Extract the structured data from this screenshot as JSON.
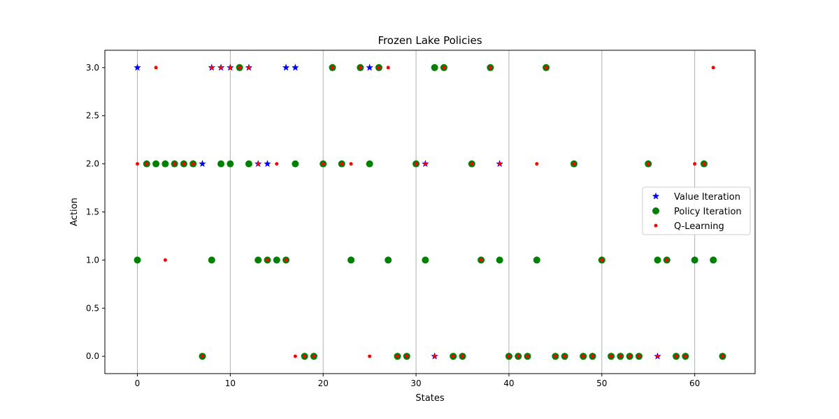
{
  "chart_data": {
    "type": "scatter",
    "title": "Frozen Lake Policies",
    "xlabel": "States",
    "ylabel": "Action",
    "xlim": [
      -3.5,
      66.5
    ],
    "ylim": [
      -0.18,
      3.18
    ],
    "x_ticks": [
      0,
      10,
      20,
      30,
      40,
      50,
      60
    ],
    "x_tick_labels": [
      "0",
      "10",
      "20",
      "30",
      "40",
      "50",
      "60"
    ],
    "y_ticks": [
      0.0,
      0.5,
      1.0,
      1.5,
      2.0,
      2.5,
      3.0
    ],
    "y_tick_labels": [
      "0.0",
      "0.5",
      "1.0",
      "1.5",
      "2.0",
      "2.5",
      "3.0"
    ],
    "grid": "vertical",
    "legend_position": "center-right",
    "series": [
      {
        "name": "Value Iteration",
        "marker": "star",
        "color": "#0000ff",
        "x": [
          0,
          1,
          2,
          3,
          4,
          5,
          6,
          7,
          8,
          9,
          10,
          11,
          12,
          13,
          14,
          15,
          16,
          17,
          18,
          19,
          20,
          21,
          22,
          23,
          24,
          25,
          26,
          27,
          28,
          29,
          30,
          31,
          32,
          33,
          34,
          35,
          36,
          37,
          38,
          39,
          40,
          41,
          42,
          43,
          44,
          45,
          46,
          47,
          48,
          49,
          50,
          51,
          52,
          53,
          54,
          55,
          56,
          57,
          58,
          59,
          60,
          61,
          62,
          63
        ],
        "y": [
          3,
          2,
          2,
          2,
          2,
          2,
          2,
          2,
          3,
          3,
          3,
          3,
          3,
          2,
          2,
          1,
          3,
          3,
          0,
          0,
          2,
          3,
          2,
          1,
          3,
          3,
          3,
          1,
          0,
          0,
          2,
          2,
          0,
          3,
          0,
          0,
          2,
          1,
          3,
          2,
          0,
          0,
          0,
          1,
          3,
          0,
          0,
          2,
          0,
          0,
          1,
          0,
          0,
          0,
          0,
          2,
          0,
          1,
          0,
          0,
          1,
          2,
          1,
          0
        ]
      },
      {
        "name": "Policy Iteration",
        "marker": "circle",
        "color": "#008000",
        "x": [
          0,
          1,
          2,
          3,
          4,
          5,
          6,
          7,
          8,
          9,
          10,
          11,
          12,
          13,
          14,
          15,
          16,
          17,
          18,
          19,
          20,
          21,
          22,
          23,
          24,
          25,
          26,
          27,
          28,
          29,
          30,
          31,
          32,
          33,
          34,
          35,
          36,
          37,
          38,
          39,
          40,
          41,
          42,
          43,
          44,
          45,
          46,
          47,
          48,
          49,
          50,
          51,
          52,
          53,
          54,
          55,
          56,
          57,
          58,
          59,
          60,
          61,
          62,
          63
        ],
        "y": [
          1,
          2,
          2,
          2,
          2,
          2,
          2,
          0,
          1,
          2,
          2,
          3,
          2,
          1,
          1,
          1,
          1,
          2,
          0,
          0,
          2,
          3,
          2,
          1,
          3,
          2,
          3,
          1,
          0,
          0,
          2,
          1,
          3,
          3,
          0,
          0,
          2,
          1,
          3,
          1,
          0,
          0,
          0,
          1,
          3,
          0,
          0,
          2,
          0,
          0,
          1,
          0,
          0,
          0,
          0,
          2,
          1,
          1,
          0,
          0,
          1,
          2,
          1,
          0
        ]
      },
      {
        "name": "Q-Learning",
        "marker": "dot",
        "color": "#ff0000",
        "x": [
          0,
          1,
          2,
          3,
          4,
          5,
          6,
          7,
          8,
          9,
          10,
          11,
          12,
          13,
          14,
          15,
          16,
          17,
          18,
          19,
          20,
          21,
          22,
          23,
          24,
          25,
          26,
          27,
          28,
          29,
          30,
          31,
          32,
          33,
          34,
          35,
          36,
          37,
          38,
          39,
          40,
          41,
          42,
          43,
          44,
          45,
          46,
          47,
          48,
          49,
          50,
          51,
          52,
          53,
          54,
          55,
          56,
          57,
          58,
          59,
          60,
          61,
          62,
          63
        ],
        "y": [
          2,
          2,
          3,
          1,
          2,
          2,
          2,
          0,
          3,
          3,
          3,
          3,
          3,
          2,
          1,
          2,
          1,
          0,
          0,
          0,
          2,
          3,
          2,
          2,
          3,
          0,
          3,
          3,
          0,
          0,
          2,
          2,
          0,
          3,
          0,
          0,
          2,
          1,
          3,
          2,
          0,
          0,
          0,
          2,
          3,
          0,
          0,
          2,
          0,
          0,
          1,
          0,
          0,
          0,
          0,
          2,
          0,
          1,
          0,
          0,
          2,
          2,
          3,
          0
        ]
      }
    ]
  }
}
